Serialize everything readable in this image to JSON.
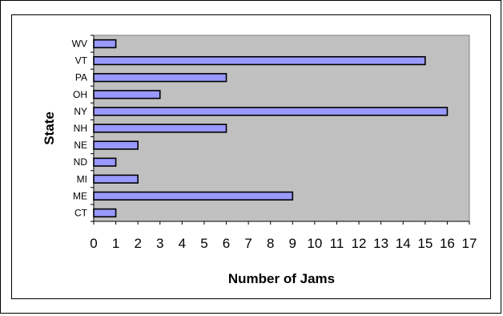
{
  "chart_data": {
    "type": "bar",
    "orientation": "horizontal",
    "categories": [
      "CT",
      "ME",
      "MI",
      "ND",
      "NE",
      "NH",
      "NY",
      "OH",
      "PA",
      "VT",
      "WV"
    ],
    "values": [
      1,
      9,
      2,
      1,
      2,
      6,
      16,
      3,
      6,
      15,
      1
    ],
    "xlabel": "Number of Jams",
    "ylabel": "State",
    "xlim": [
      0,
      17
    ],
    "xticks": [
      0,
      1,
      2,
      3,
      4,
      5,
      6,
      7,
      8,
      9,
      10,
      11,
      12,
      13,
      14,
      15,
      16,
      17
    ],
    "grid": false,
    "legend": "none",
    "colors": {
      "plot_background": "#c0c0c0",
      "bar_fill": "#9999ff",
      "bar_stroke": "#000000"
    }
  }
}
